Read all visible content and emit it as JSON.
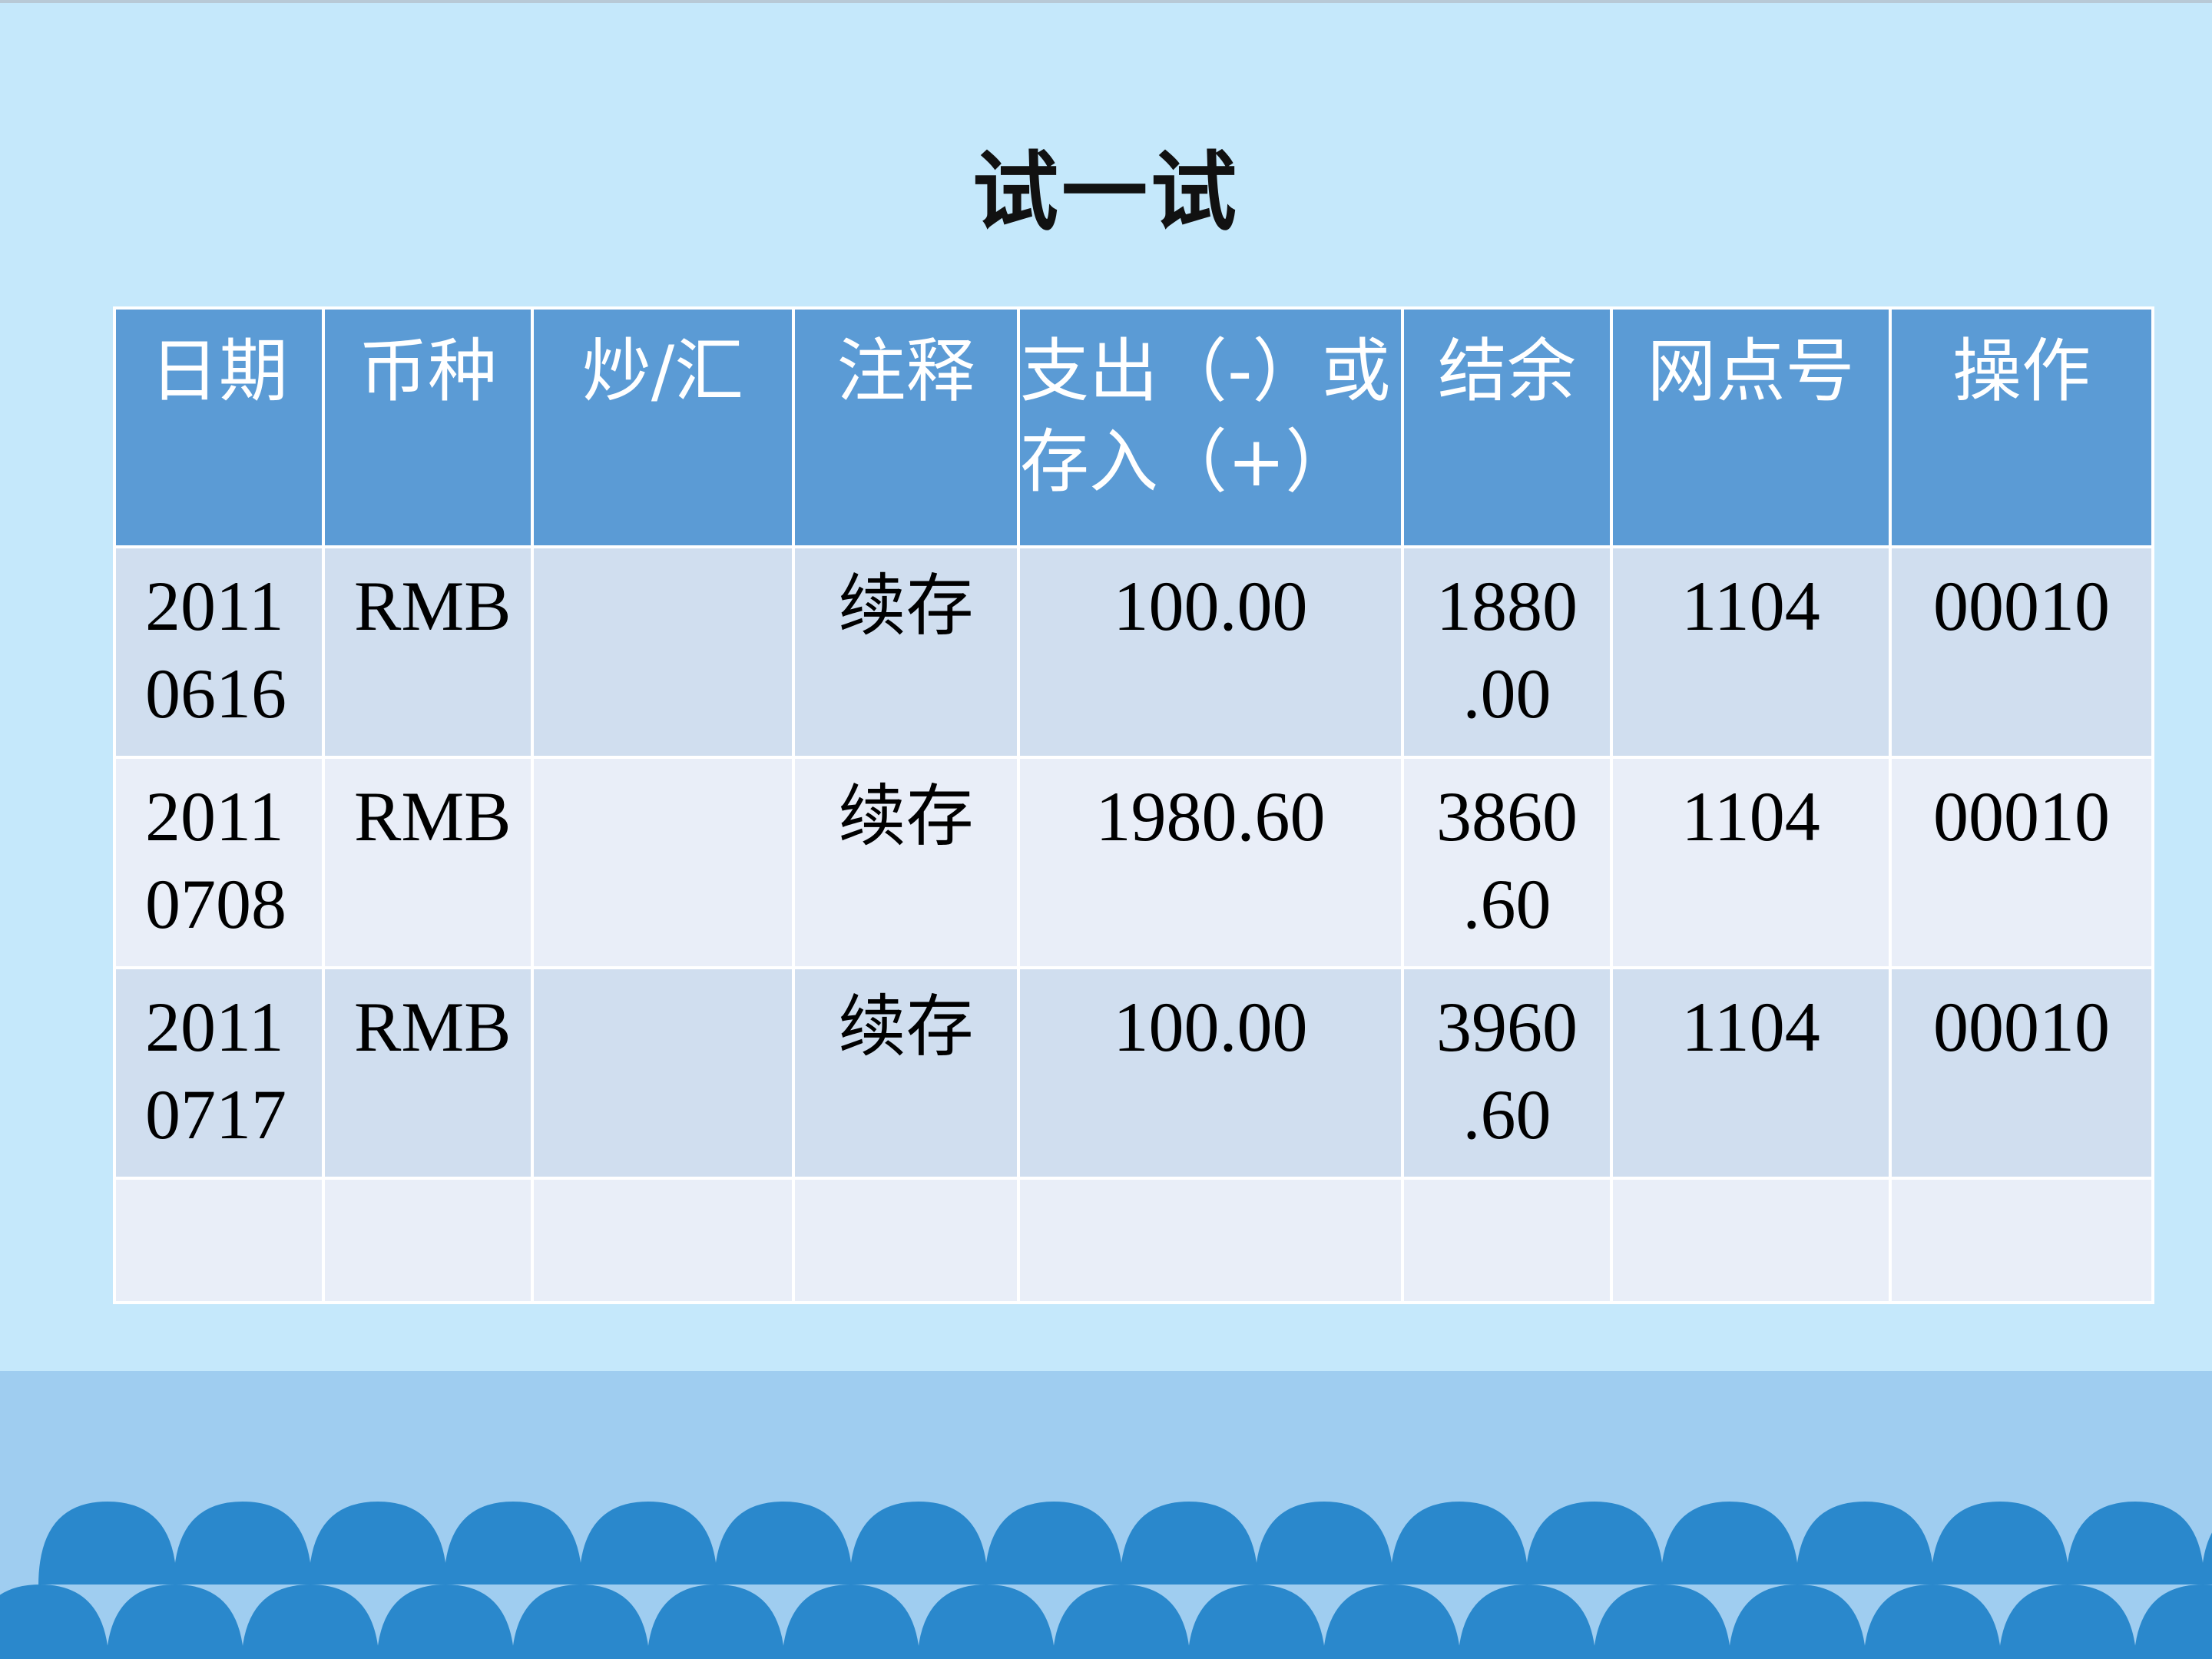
{
  "title": "试一试",
  "table": {
    "headers": [
      "日期",
      "币种",
      "炒/汇",
      "注释",
      "支出（-）或存入（+）",
      "结余",
      "网点号",
      "操作"
    ],
    "rows": [
      {
        "date": "2011 0616",
        "currency": "RMB",
        "type": "",
        "note": "续存",
        "amount": "100.00",
        "balance": "1880 .00",
        "branch": "1104",
        "operator": "00010"
      },
      {
        "date": "2011 0708",
        "currency": "RMB",
        "type": "",
        "note": "续存",
        "amount": "1980.60",
        "balance": "3860 .60",
        "branch": "1104",
        "operator": "00010"
      },
      {
        "date": "2011 0717",
        "currency": "RMB",
        "type": "",
        "note": "续存",
        "amount": "100.00",
        "balance": "3960 .60",
        "branch": "1104",
        "operator": "00010"
      },
      {
        "date": "",
        "currency": "",
        "type": "",
        "note": "",
        "amount": "",
        "balance": "",
        "branch": "",
        "operator": ""
      }
    ]
  },
  "colors": {
    "background": "#c5e8fb",
    "header": "#5b9bd5",
    "row_odd": "#d0deef",
    "row_even": "#e9eef8",
    "band": "#9fcdf0",
    "waves": "#2a88cc"
  }
}
